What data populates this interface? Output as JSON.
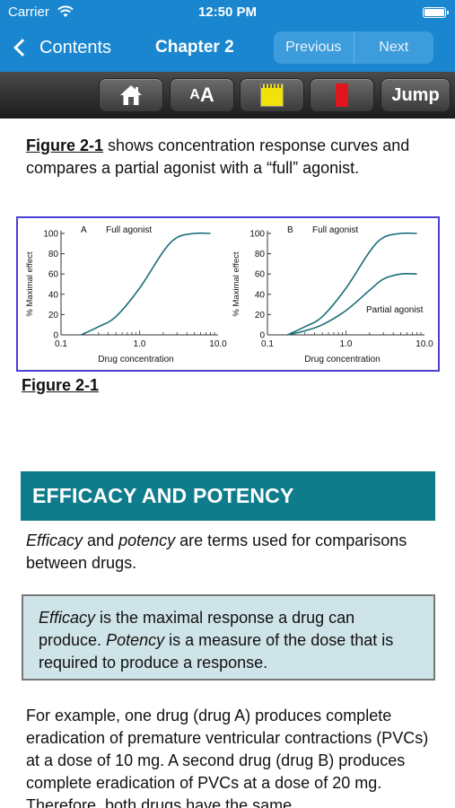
{
  "status": {
    "carrier": "Carrier",
    "time": "12:50 PM"
  },
  "nav": {
    "back_label": "Contents",
    "title": "Chapter 2",
    "previous": "Previous",
    "next": "Next"
  },
  "toolbar": {
    "font_small": "A",
    "font_big": "A",
    "jump": "Jump",
    "note_color": "#f2e20a",
    "bookmark_color": "#e0151d"
  },
  "intro": {
    "fig_ref": "Figure 2-1",
    "text": " shows concentration response curves and compares a partial agonist with a “full” agonist."
  },
  "figure": {
    "caption": "Figure 2-1",
    "chart_data": [
      {
        "type": "line",
        "panel": "A",
        "title": "Full agonist",
        "xlabel": "Drug concentration",
        "ylabel": "% Maximal effect",
        "x_scale": "log",
        "xlim": [
          0.1,
          10.0
        ],
        "ylim": [
          0,
          100
        ],
        "x_ticks": [
          "0.1",
          "1.0",
          "10.0"
        ],
        "y_ticks": [
          "0",
          "20",
          "40",
          "60",
          "80",
          "100"
        ],
        "series": [
          {
            "name": "Full agonist",
            "x": [
              0.18,
              0.3,
              0.5,
              1.0,
              2.0,
              3.0,
              5.0,
              8.0
            ],
            "y": [
              0,
              8,
              18,
              46,
              82,
              96,
              100,
              100
            ]
          }
        ]
      },
      {
        "type": "line",
        "panel": "B",
        "title": "Full agonist",
        "xlabel": "Drug concentration",
        "ylabel": "% Maximal effect",
        "x_scale": "log",
        "xlim": [
          0.1,
          10.0
        ],
        "ylim": [
          0,
          100
        ],
        "x_ticks": [
          "0.1",
          "1.0",
          "10.0"
        ],
        "y_ticks": [
          "0",
          "20",
          "40",
          "60",
          "80",
          "100"
        ],
        "annotation": "Partial agonist",
        "series": [
          {
            "name": "Full agonist",
            "x": [
              0.18,
              0.3,
              0.5,
              1.0,
              2.0,
              3.0,
              5.0,
              8.0
            ],
            "y": [
              0,
              8,
              18,
              46,
              82,
              96,
              100,
              100
            ]
          },
          {
            "name": "Partial agonist",
            "x": [
              0.18,
              0.3,
              0.5,
              1.0,
              2.0,
              3.0,
              5.0,
              8.0
            ],
            "y": [
              0,
              4,
              10,
              24,
              44,
              55,
              60,
              60
            ]
          }
        ]
      }
    ]
  },
  "section": {
    "title": "EFFICACY AND POTENCY"
  },
  "para1": {
    "efficacy": "Efficacy",
    "and": " and ",
    "potency": "potency",
    "rest": " are terms used for comparisons between drugs."
  },
  "callout": {
    "efficacy": "Efficacy",
    "text1": " is the maximal response a drug can produce. ",
    "potency": "Potency",
    "text2": " is a measure of the dose that is required to produce a response."
  },
  "para2": {
    "text": "For example, one drug (drug A) produces complete eradication of premature ventricular contractions (PVCs) at a dose of 10 mg. A second drug (drug B) produces complete eradication of PVCs at a dose of 20 mg. Therefore, both drugs have the same"
  }
}
